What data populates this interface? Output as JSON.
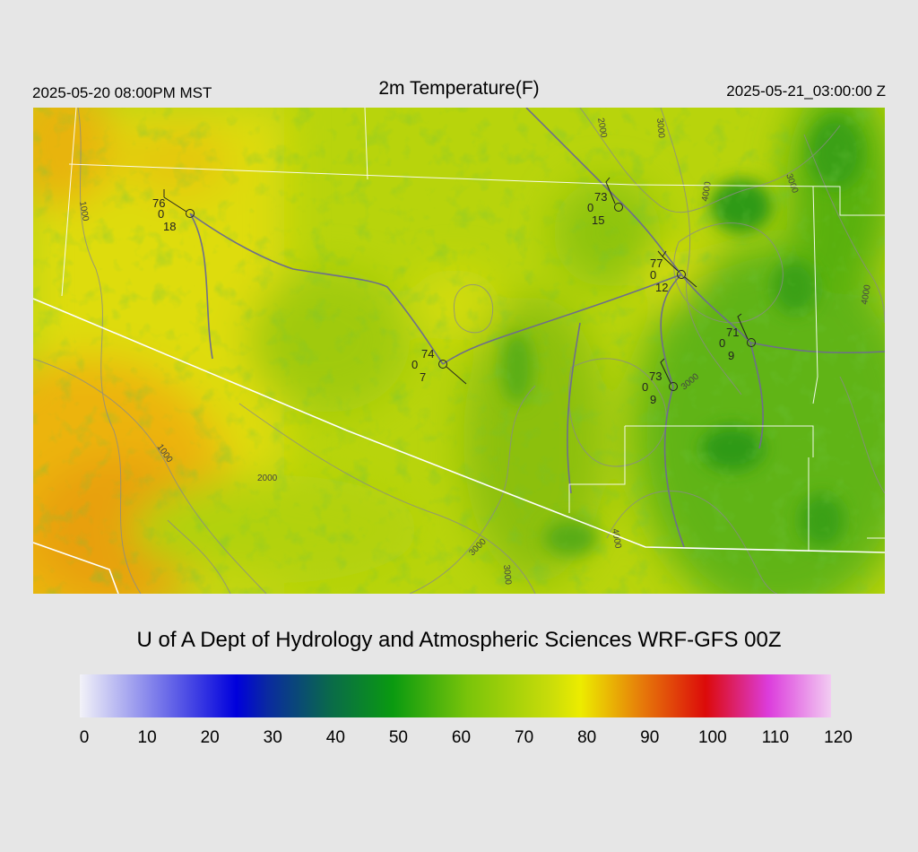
{
  "header": {
    "valid_local": "2025-05-20 08:00PM MST",
    "title": "2m Temperature(F)",
    "valid_utc": "2025-05-21_03:00:00 Z"
  },
  "credit": "U of A Dept of Hydrology and Atmospheric Sciences WRF-GFS 00Z",
  "colorbar": {
    "min": 0,
    "max": 120,
    "tick_labels": [
      "0",
      "10",
      "20",
      "30",
      "40",
      "50",
      "60",
      "70",
      "80",
      "90",
      "100",
      "110",
      "120"
    ],
    "color_stops": [
      {
        "value": 0,
        "color": "#f2f2f8"
      },
      {
        "value": 25,
        "color": "#0000dc"
      },
      {
        "value": 30,
        "color": "#0a2aa0"
      },
      {
        "value": 40,
        "color": "#0a6a4a"
      },
      {
        "value": 50,
        "color": "#0a9a10"
      },
      {
        "value": 62,
        "color": "#7ac40a"
      },
      {
        "value": 75,
        "color": "#c8dc0a"
      },
      {
        "value": 80,
        "color": "#ecec00"
      },
      {
        "value": 90,
        "color": "#e6780a"
      },
      {
        "value": 100,
        "color": "#dc0a0a"
      },
      {
        "value": 110,
        "color": "#dc3cdc"
      },
      {
        "value": 120,
        "color": "#f2ccf2"
      }
    ]
  },
  "contour_labels": [
    "1000",
    "1000",
    "2000",
    "2000",
    "3000",
    "3000",
    "3000",
    "3000",
    "4000",
    "4000",
    "4000",
    "3000"
  ],
  "stations": [
    {
      "temp": "76",
      "precip": "0",
      "dewpoint": "18"
    },
    {
      "temp": "73",
      "precip": "0",
      "dewpoint": "15"
    },
    {
      "temp": "77",
      "precip": "0",
      "dewpoint": "12"
    },
    {
      "temp": "71",
      "precip": "0",
      "dewpoint": "9"
    },
    {
      "temp": "74",
      "precip": "0",
      "dewpoint": "7"
    },
    {
      "temp": "73",
      "precip": "0",
      "dewpoint": "9"
    }
  ]
}
